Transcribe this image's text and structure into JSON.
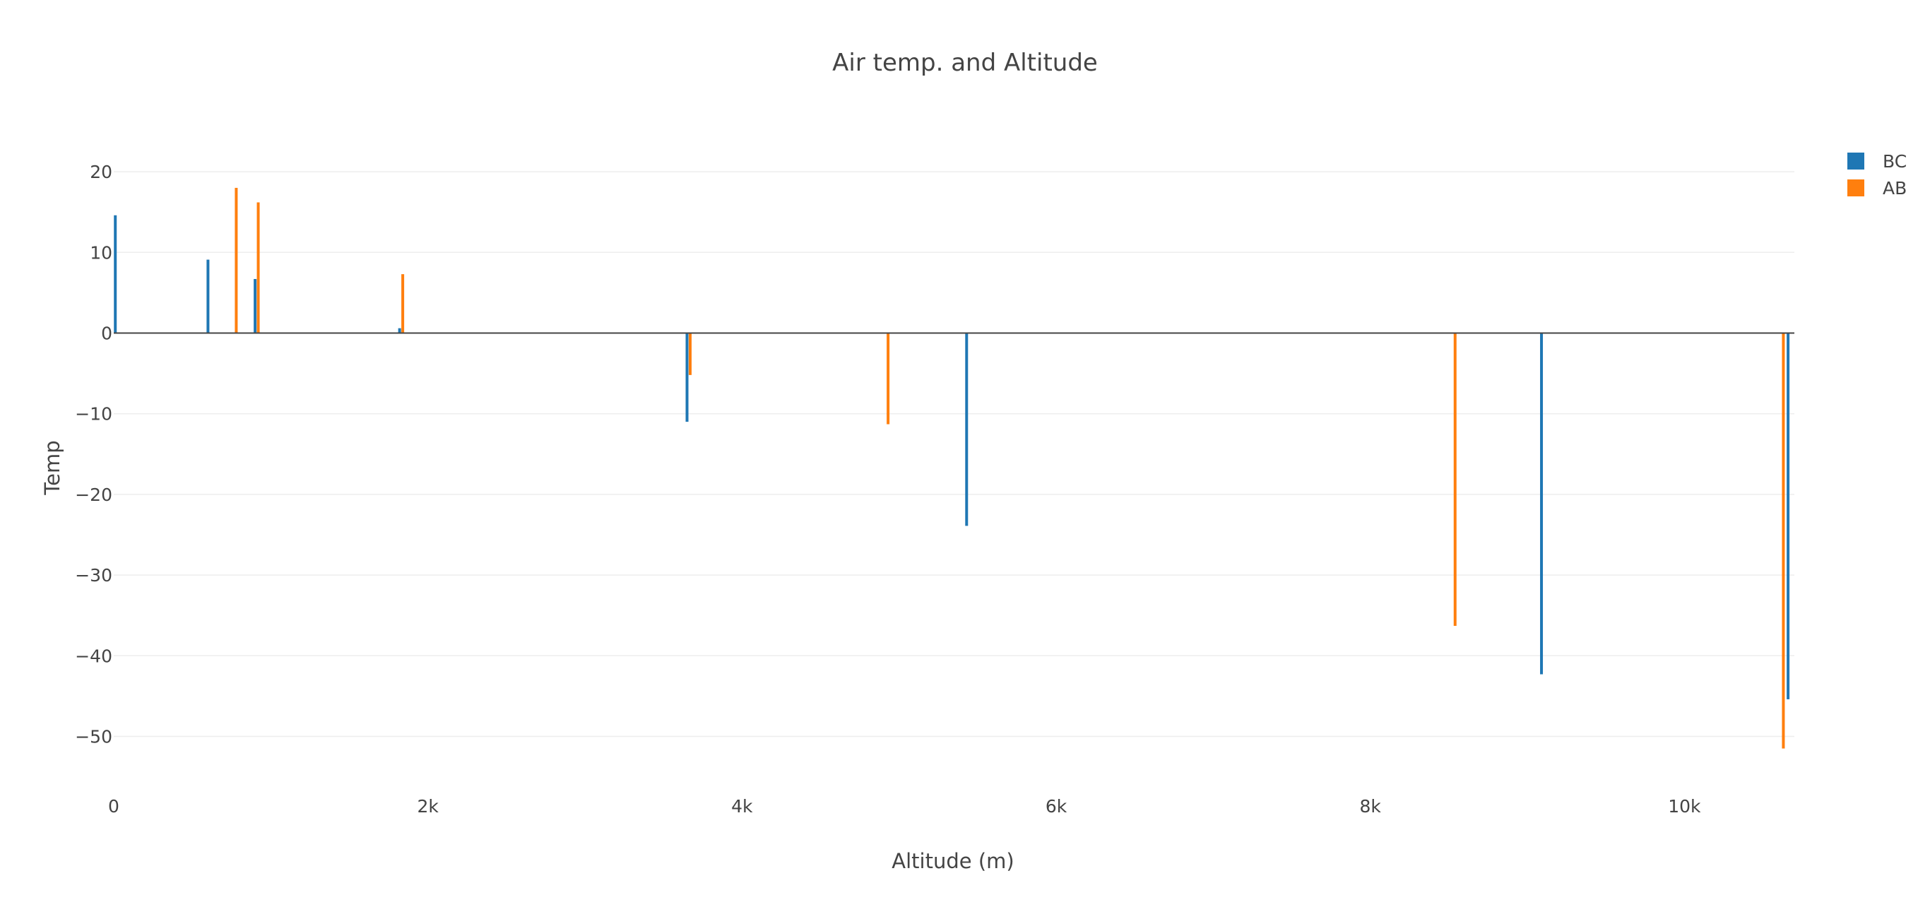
{
  "chart_data": {
    "type": "bar",
    "title": "Air temp. and Altitude",
    "xlabel": "Altitude (m)",
    "ylabel": "Temp",
    "xlim": [
      0,
      10700
    ],
    "ylim": [
      -56,
      25
    ],
    "x_ticks": [
      {
        "value": 0,
        "label": "0"
      },
      {
        "value": 2000,
        "label": "2k"
      },
      {
        "value": 4000,
        "label": "4k"
      },
      {
        "value": 6000,
        "label": "6k"
      },
      {
        "value": 8000,
        "label": "8k"
      },
      {
        "value": 10000,
        "label": "10k"
      }
    ],
    "y_ticks": [
      {
        "value": 20,
        "label": "20"
      },
      {
        "value": 10,
        "label": "10"
      },
      {
        "value": 0,
        "label": "0"
      },
      {
        "value": -10,
        "label": "−10"
      },
      {
        "value": -20,
        "label": "−20"
      },
      {
        "value": -30,
        "label": "−30"
      },
      {
        "value": -40,
        "label": "−40"
      },
      {
        "value": -50,
        "label": "−50"
      }
    ],
    "grid": true,
    "legend_position": "top-right",
    "series": [
      {
        "name": "BC",
        "color": "#1f77b4",
        "x": [
          10,
          600,
          900,
          1820,
          3650,
          5430,
          9090,
          10660
        ],
        "y": [
          14.6,
          9.1,
          6.7,
          0.6,
          -11.0,
          -23.9,
          -42.3,
          -45.4
        ]
      },
      {
        "name": "AB",
        "color": "#ff7f0e",
        "x": [
          780,
          920,
          1840,
          3670,
          4930,
          8540,
          10630
        ],
        "y": [
          18.0,
          16.2,
          7.3,
          -5.2,
          -11.3,
          -36.3,
          -51.5
        ]
      }
    ]
  }
}
